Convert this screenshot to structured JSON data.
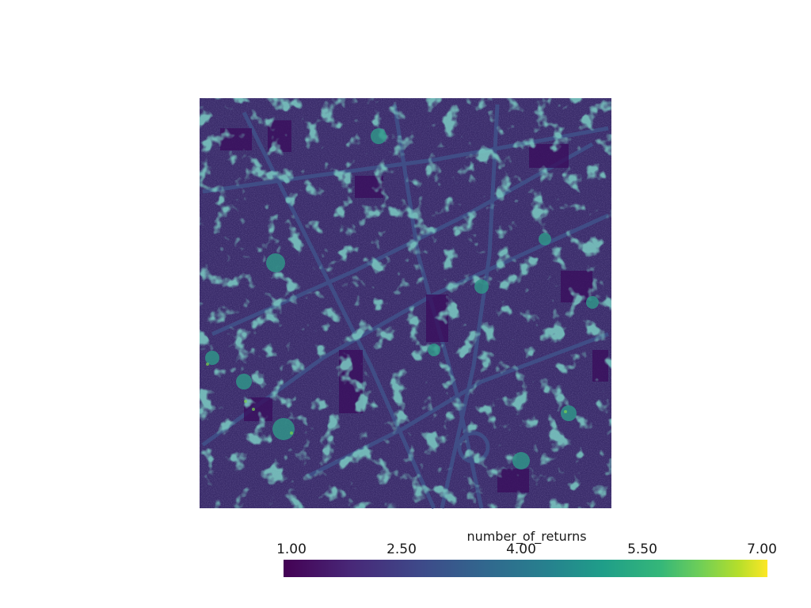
{
  "scalar_bar": {
    "title": "number_of_returns",
    "ticks": [
      "1.00",
      "2.50",
      "4.00",
      "5.50",
      "7.00"
    ],
    "range": [
      1.0,
      7.0
    ],
    "colormap": "viridis",
    "colors": [
      "#440154",
      "#482878",
      "#3e4989",
      "#31688e",
      "#26828e",
      "#1f9e89",
      "#35b779",
      "#6ece58",
      "#b5de2b",
      "#fde725"
    ]
  },
  "scene": {
    "background": "#ffffff",
    "subject": "aerial-lidar-point-cloud-city",
    "point_color_base": "#3b2a6e",
    "point_color_highlight": "#3aa58d"
  }
}
